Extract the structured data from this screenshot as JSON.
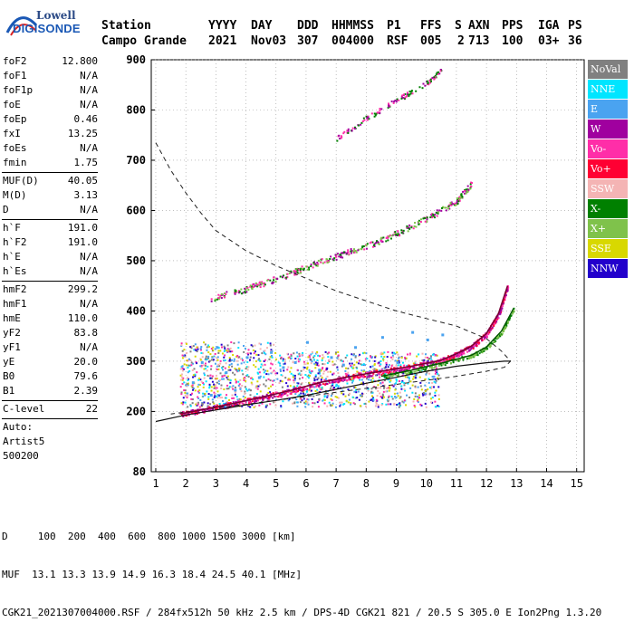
{
  "logo": {
    "top": "Lowell",
    "bottom": "DIGISONDE"
  },
  "header": {
    "row1": [
      "Station",
      "YYYY",
      "DAY",
      "DDD",
      "HHMMSS",
      "P1",
      "FFS",
      "S",
      "AXN",
      "PPS",
      "IGA",
      "PS"
    ],
    "row2": [
      "Campo Grande",
      "2021",
      "Nov03",
      "307",
      "004000",
      "RSF",
      "005",
      "2",
      "713",
      "100",
      "03+",
      "36"
    ]
  },
  "params": {
    "group1": [
      {
        "k": "foF2",
        "v": "12.800"
      },
      {
        "k": "foF1",
        "v": "N/A"
      },
      {
        "k": "foF1p",
        "v": "N/A"
      },
      {
        "k": "foE",
        "v": "N/A"
      },
      {
        "k": "foEp",
        "v": "0.46"
      },
      {
        "k": "fxI",
        "v": "13.25"
      },
      {
        "k": "foEs",
        "v": "N/A"
      },
      {
        "k": "fmin",
        "v": "1.75"
      }
    ],
    "group2": [
      {
        "k": "MUF(D)",
        "v": "40.05"
      },
      {
        "k": "M(D)",
        "v": "3.13"
      },
      {
        "k": "D",
        "v": "N/A"
      }
    ],
    "group3": [
      {
        "k": "h`F",
        "v": "191.0"
      },
      {
        "k": "h`F2",
        "v": "191.0"
      },
      {
        "k": "h`E",
        "v": "N/A"
      },
      {
        "k": "h`Es",
        "v": "N/A"
      }
    ],
    "group4": [
      {
        "k": "hmF2",
        "v": "299.2"
      },
      {
        "k": "hmF1",
        "v": "N/A"
      },
      {
        "k": "hmE",
        "v": "110.0"
      },
      {
        "k": "yF2",
        "v": "83.8"
      },
      {
        "k": "yF1",
        "v": "N/A"
      },
      {
        "k": "yE",
        "v": "20.0"
      },
      {
        "k": "B0",
        "v": "79.6"
      },
      {
        "k": "B1",
        "v": "2.39"
      }
    ],
    "group5": [
      {
        "k": "C-level",
        "v": "22"
      }
    ],
    "auto": [
      "Auto:",
      "Artist5",
      "500200"
    ]
  },
  "legend": [
    {
      "label": "NoVal",
      "color": "#808080"
    },
    {
      "label": "NNE",
      "color": "#00e5ff"
    },
    {
      "label": "E",
      "color": "#4aa3f0"
    },
    {
      "label": "W",
      "color": "#a0009f"
    },
    {
      "label": "Vo-",
      "color": "#ff2ea8"
    },
    {
      "label": "Vo+",
      "color": "#ff0033"
    },
    {
      "label": "SSW",
      "color": "#f4b4b4"
    },
    {
      "label": "X-",
      "color": "#008000"
    },
    {
      "label": "X+",
      "color": "#7fc24b"
    },
    {
      "label": "SSE",
      "color": "#d8d800"
    },
    {
      "label": "NNW",
      "color": "#2200cc"
    }
  ],
  "footer": {
    "line1": "D     100  200  400  600  800 1000 1500 3000 [km]",
    "line2": "MUF  13.1 13.3 13.9 14.9 16.3 18.4 24.5 40.1 [MHz]",
    "line3": "CGK21_2021307004000.RSF / 284fx512h 50 kHz 2.5 km / DPS-4D CGK21 821 / 20.5 S 305.0 E Ion2Png 1.3.20"
  },
  "chart_data": {
    "type": "scatter",
    "x_ticks": [
      "1",
      "2",
      "3",
      "4",
      "5",
      "6",
      "7",
      "8",
      "9",
      "10",
      "11",
      "12",
      "13",
      "14",
      "15"
    ],
    "y_ticks": [
      "80",
      "200",
      "300",
      "400",
      "500",
      "600",
      "700",
      "800",
      "900"
    ],
    "xlim": [
      0.85,
      15.25
    ],
    "ylim": [
      80,
      900
    ],
    "grid": "dotted",
    "legend_position": "right",
    "profile_curve": {
      "x": [
        1.0,
        2.0,
        3.0,
        4.0,
        5.0,
        6.0,
        7.0,
        8.0,
        9.0,
        10.0,
        11.0,
        12.0,
        12.6,
        12.8
      ],
      "y": [
        180,
        193,
        203,
        213,
        222,
        232,
        244,
        256,
        268,
        280,
        290,
        297,
        300,
        300
      ]
    },
    "dashed_curve": {
      "x": [
        1.0,
        1.5,
        2.0,
        2.5,
        3.0,
        4.0,
        5.0,
        6.0,
        7.0,
        8.0,
        9.0,
        10.0,
        11.0,
        12.0,
        12.5,
        12.8,
        12.6,
        12.0,
        11.0,
        10.0,
        9.0,
        8.0,
        7.0,
        6.0,
        5.0,
        4.0,
        3.0,
        2.0,
        1.5
      ],
      "y": [
        735,
        680,
        635,
        595,
        560,
        520,
        490,
        465,
        440,
        420,
        400,
        385,
        370,
        345,
        320,
        300,
        288,
        280,
        270,
        262,
        254,
        246,
        238,
        230,
        222,
        214,
        207,
        199,
        195
      ]
    },
    "o_trace": {
      "x": [
        1.8,
        2.5,
        3.5,
        4.5,
        5.5,
        6.5,
        7.5,
        8.5,
        9.5,
        10.5,
        11.0,
        11.5,
        12.0,
        12.4,
        12.7
      ],
      "y": [
        195,
        203,
        215,
        228,
        242,
        258,
        270,
        280,
        290,
        302,
        315,
        330,
        355,
        395,
        450
      ]
    },
    "x_trace": {
      "x": [
        8.5,
        9.5,
        10.5,
        11.5,
        12.0,
        12.5,
        12.9
      ],
      "y": [
        270,
        282,
        296,
        312,
        328,
        360,
        405
      ]
    },
    "second_hop": {
      "x": [
        2.8,
        4.0,
        5.0,
        6.0,
        7.0,
        8.0,
        9.0,
        10.0,
        11.0,
        11.5
      ],
      "y": [
        425,
        445,
        465,
        488,
        510,
        530,
        555,
        585,
        620,
        655
      ]
    },
    "third_hop": {
      "x": [
        7.0,
        8.0,
        9.0,
        10.0,
        10.5
      ],
      "y": [
        745,
        785,
        820,
        855,
        880
      ]
    },
    "sporadic_points": {
      "x": [
        2.2,
        2.5,
        2.8,
        3.0,
        3.3,
        3.6,
        4.0,
        4.4,
        4.8,
        5.2,
        5.6,
        6.0,
        6.4,
        6.8,
        7.2,
        7.6,
        8.0,
        8.5,
        9.0,
        9.5,
        10.0,
        10.5
      ],
      "y": [
        260,
        300,
        235,
        330,
        280,
        245,
        310,
        270,
        320,
        290,
        300,
        340,
        285,
        310,
        295,
        330,
        280,
        350,
        300,
        360,
        345,
        355
      ]
    }
  }
}
